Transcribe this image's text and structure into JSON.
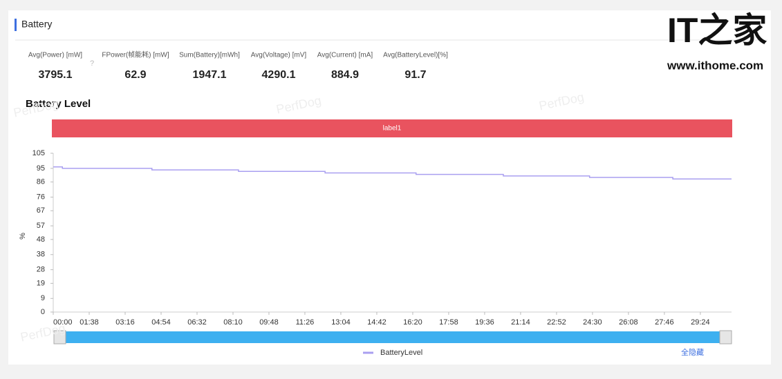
{
  "header": {
    "title": "Battery"
  },
  "logo": {
    "brand": "IT之家",
    "url": "www.ithome.com"
  },
  "watermark": "PerfDog",
  "stats": [
    {
      "label": "Avg(Power) [mW]",
      "value": 3795.1
    },
    {
      "label": "FPower(帧能耗) [mW]",
      "value": 62.9
    },
    {
      "label": "Sum(Battery)[mWh]",
      "value": 1947.1
    },
    {
      "label": "Avg(Voltage) [mV]",
      "value": 4290.1
    },
    {
      "label": "Avg(Current) [mA]",
      "value": 884.9
    },
    {
      "label": "Avg(BatteryLevel)[%]",
      "value": 91.7
    }
  ],
  "chart_data": {
    "type": "line",
    "title": "Battery Level",
    "band_label": "label1",
    "y_label": "%",
    "ylim": [
      0,
      105
    ],
    "yticks": [
      0,
      9,
      19,
      28,
      38,
      48,
      57,
      67,
      76,
      86,
      95,
      105
    ],
    "xlim": [
      0,
      1849
    ],
    "xticks": [
      {
        "value": 0,
        "label": "00:00"
      },
      {
        "value": 98,
        "label": "01:38"
      },
      {
        "value": 196,
        "label": "03:16"
      },
      {
        "value": 294,
        "label": "04:54"
      },
      {
        "value": 392,
        "label": "06:32"
      },
      {
        "value": 490,
        "label": "08:10"
      },
      {
        "value": 588,
        "label": "09:48"
      },
      {
        "value": 686,
        "label": "11:26"
      },
      {
        "value": 784,
        "label": "13:04"
      },
      {
        "value": 882,
        "label": "14:42"
      },
      {
        "value": 980,
        "label": "16:20"
      },
      {
        "value": 1078,
        "label": "17:58"
      },
      {
        "value": 1176,
        "label": "19:36"
      },
      {
        "value": 1274,
        "label": "21:14"
      },
      {
        "value": 1372,
        "label": "22:52"
      },
      {
        "value": 1470,
        "label": "24:30"
      },
      {
        "value": 1568,
        "label": "26:08"
      },
      {
        "value": 1666,
        "label": "27:46"
      },
      {
        "value": 1764,
        "label": "29:24"
      }
    ],
    "x": [
      0,
      25,
      25,
      269,
      269,
      505,
      505,
      741,
      741,
      989,
      989,
      1227,
      1227,
      1462,
      1462,
      1689,
      1689,
      1849
    ],
    "series": [
      {
        "name": "BatteryLevel",
        "color": "#a99ff0",
        "values": [
          96,
          96,
          95,
          95,
          94,
          94,
          93,
          93,
          92,
          92,
          91,
          91,
          90,
          90,
          89,
          89,
          88,
          88
        ]
      }
    ],
    "hide_all": "全隐藏"
  }
}
